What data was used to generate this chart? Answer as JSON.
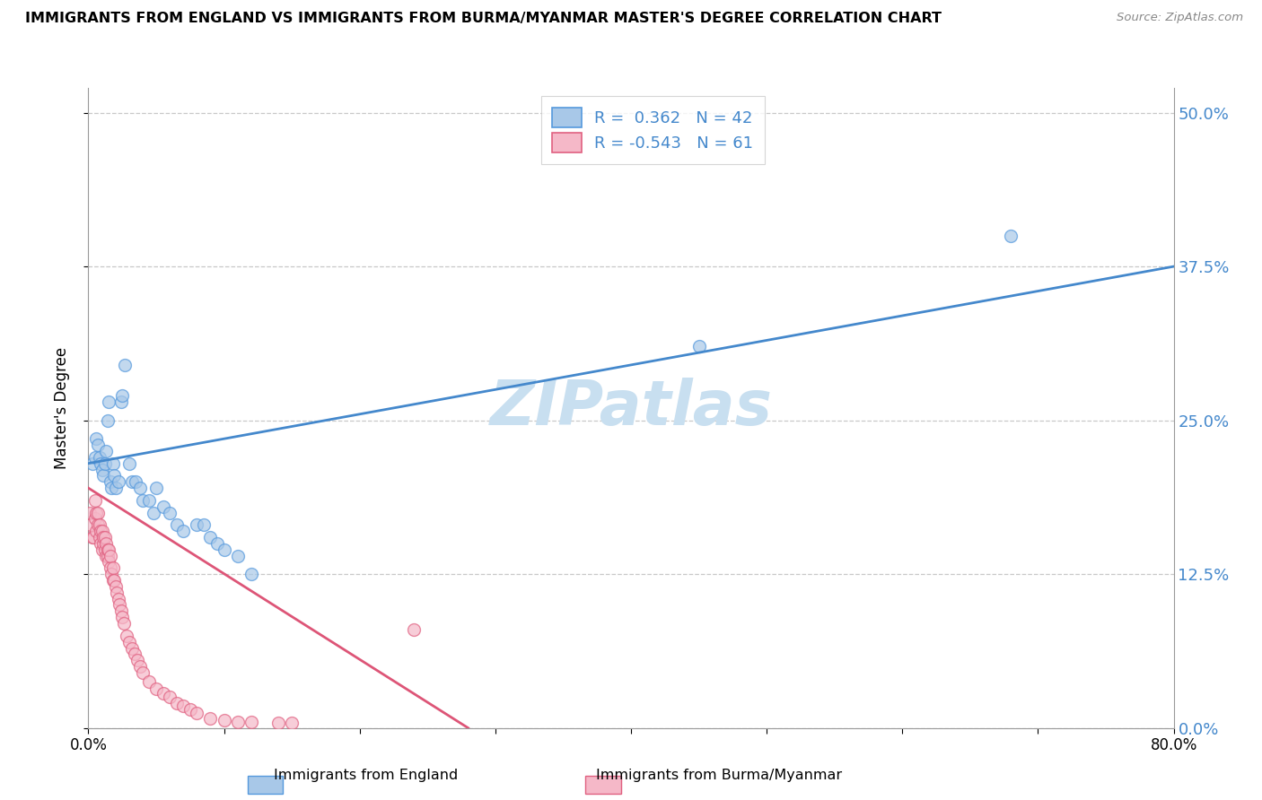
{
  "title": "IMMIGRANTS FROM ENGLAND VS IMMIGRANTS FROM BURMA/MYANMAR MASTER'S DEGREE CORRELATION CHART",
  "source": "Source: ZipAtlas.com",
  "ylabel": "Master's Degree",
  "ytick_vals": [
    0.0,
    0.125,
    0.25,
    0.375,
    0.5
  ],
  "ytick_labels": [
    "0.0%",
    "12.5%",
    "25.0%",
    "37.5%",
    "50.0%"
  ],
  "xlim": [
    0.0,
    0.8
  ],
  "ylim": [
    0.0,
    0.52
  ],
  "legend_r_england": "0.362",
  "legend_n_england": "42",
  "legend_r_burma": "-0.543",
  "legend_n_burma": "61",
  "color_england_fill": "#a8c8e8",
  "color_england_edge": "#5599dd",
  "color_burma_fill": "#f5b8c8",
  "color_burma_edge": "#e06080",
  "color_england_line": "#4488cc",
  "color_burma_line": "#dd5577",
  "watermark_color": "#c8dff0",
  "england_scatter_x": [
    0.003,
    0.005,
    0.006,
    0.007,
    0.008,
    0.009,
    0.01,
    0.011,
    0.012,
    0.013,
    0.014,
    0.015,
    0.016,
    0.017,
    0.018,
    0.019,
    0.02,
    0.022,
    0.024,
    0.025,
    0.027,
    0.03,
    0.032,
    0.035,
    0.038,
    0.04,
    0.045,
    0.048,
    0.05,
    0.055,
    0.06,
    0.065,
    0.07,
    0.08,
    0.085,
    0.09,
    0.095,
    0.1,
    0.11,
    0.12,
    0.45,
    0.68
  ],
  "england_scatter_y": [
    0.215,
    0.22,
    0.235,
    0.23,
    0.22,
    0.215,
    0.21,
    0.205,
    0.215,
    0.225,
    0.25,
    0.265,
    0.2,
    0.195,
    0.215,
    0.205,
    0.195,
    0.2,
    0.265,
    0.27,
    0.295,
    0.215,
    0.2,
    0.2,
    0.195,
    0.185,
    0.185,
    0.175,
    0.195,
    0.18,
    0.175,
    0.165,
    0.16,
    0.165,
    0.165,
    0.155,
    0.15,
    0.145,
    0.14,
    0.125,
    0.31,
    0.4
  ],
  "burma_scatter_x": [
    0.001,
    0.002,
    0.003,
    0.004,
    0.005,
    0.005,
    0.006,
    0.006,
    0.007,
    0.007,
    0.008,
    0.008,
    0.009,
    0.009,
    0.01,
    0.01,
    0.011,
    0.011,
    0.012,
    0.012,
    0.013,
    0.013,
    0.014,
    0.014,
    0.015,
    0.015,
    0.016,
    0.016,
    0.017,
    0.018,
    0.018,
    0.019,
    0.02,
    0.021,
    0.022,
    0.023,
    0.024,
    0.025,
    0.026,
    0.028,
    0.03,
    0.032,
    0.034,
    0.036,
    0.038,
    0.04,
    0.045,
    0.05,
    0.055,
    0.06,
    0.065,
    0.07,
    0.075,
    0.08,
    0.09,
    0.1,
    0.11,
    0.12,
    0.14,
    0.15,
    0.24
  ],
  "burma_scatter_y": [
    0.175,
    0.165,
    0.155,
    0.155,
    0.17,
    0.185,
    0.16,
    0.175,
    0.165,
    0.175,
    0.155,
    0.165,
    0.15,
    0.16,
    0.145,
    0.16,
    0.15,
    0.155,
    0.145,
    0.155,
    0.14,
    0.15,
    0.14,
    0.145,
    0.135,
    0.145,
    0.13,
    0.14,
    0.125,
    0.13,
    0.12,
    0.12,
    0.115,
    0.11,
    0.105,
    0.1,
    0.095,
    0.09,
    0.085,
    0.075,
    0.07,
    0.065,
    0.06,
    0.055,
    0.05,
    0.045,
    0.038,
    0.032,
    0.028,
    0.025,
    0.02,
    0.018,
    0.015,
    0.012,
    0.008,
    0.006,
    0.005,
    0.005,
    0.004,
    0.004,
    0.08
  ],
  "eng_line_x0": 0.0,
  "eng_line_y0": 0.215,
  "eng_line_x1": 0.8,
  "eng_line_y1": 0.375,
  "bur_line_x0": 0.0,
  "bur_line_y0": 0.195,
  "bur_line_x1": 0.28,
  "bur_line_y1": 0.0
}
